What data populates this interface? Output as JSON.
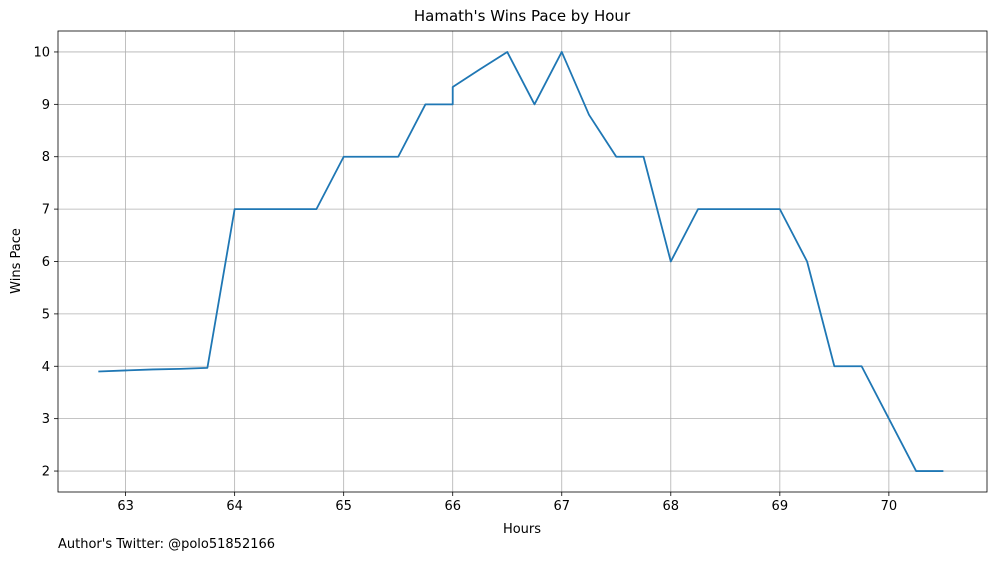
{
  "chart_data": {
    "type": "line",
    "title": "Hamath's Wins Pace by Hour",
    "xlabel": "Hours",
    "ylabel": "Wins Pace",
    "xlim": [
      62.38,
      70.9
    ],
    "ylim": [
      1.6,
      10.4
    ],
    "xticks": [
      63,
      64,
      65,
      66,
      67,
      68,
      69,
      70
    ],
    "yticks": [
      2,
      3,
      4,
      5,
      6,
      7,
      8,
      9,
      10
    ],
    "grid": true,
    "line_color": "#1f77b4",
    "series": [
      {
        "x": [
          62.75,
          63.0,
          63.25,
          63.5,
          63.75,
          64.0,
          64.25,
          64.5,
          64.75,
          65.0,
          65.25,
          65.5,
          65.75,
          66.0,
          66.0,
          66.25,
          66.5,
          66.75,
          67.0,
          67.25,
          67.5,
          67.75,
          68.0,
          68.25,
          68.5,
          68.75,
          69.0,
          69.25,
          69.5,
          69.75,
          70.0,
          70.25,
          70.5
        ],
        "y": [
          3.9,
          3.92,
          3.94,
          3.95,
          3.97,
          7.0,
          7.0,
          7.0,
          7.0,
          8.0,
          8.0,
          8.0,
          9.0,
          9.0,
          9.33,
          9.67,
          10.0,
          9.0,
          10.0,
          8.8,
          8.0,
          8.0,
          6.0,
          7.0,
          7.0,
          7.0,
          7.0,
          6.0,
          4.0,
          4.0,
          3.0,
          2.0,
          2.0
        ]
      }
    ]
  },
  "footer_text": "Author's Twitter: @polo51852166"
}
